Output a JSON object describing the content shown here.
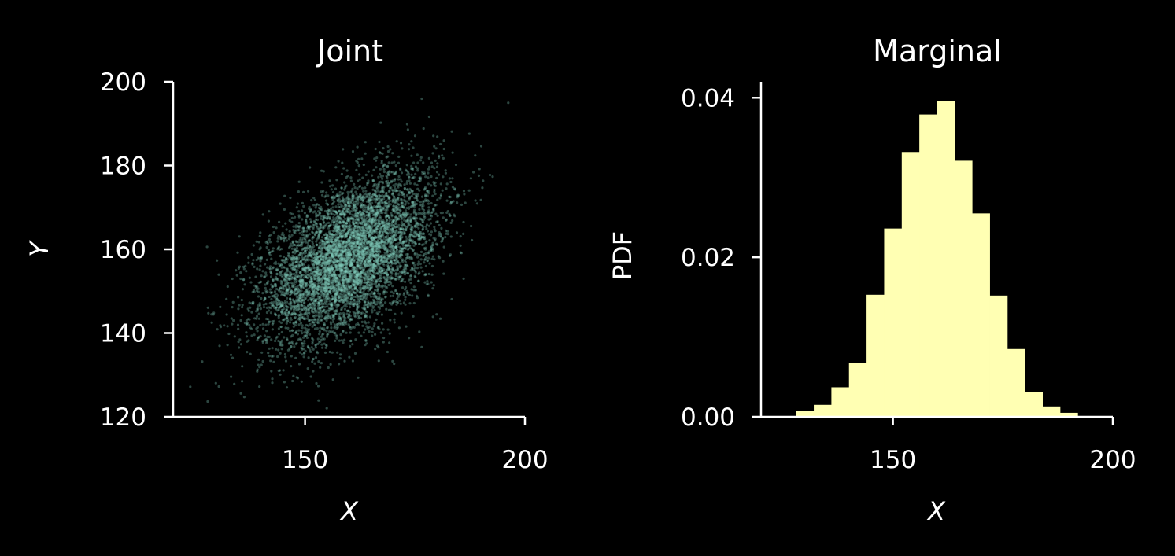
{
  "chart_data": [
    {
      "type": "scatter",
      "title": "Joint",
      "xlabel": "X",
      "ylabel": "Y",
      "xlim": [
        120,
        200
      ],
      "ylim": [
        120,
        200
      ],
      "xticks": [
        150,
        200
      ],
      "yticks": [
        120,
        140,
        160,
        180,
        200
      ],
      "color": "#7fc8b8",
      "point_opacity": 0.35,
      "grid": false,
      "legend": "none",
      "distribution": {
        "kind": "bivariate normal",
        "mean_x": 160,
        "mean_y": 158,
        "sd_x": 10,
        "sd_y": 10,
        "correlation": 0.5,
        "n_points": 6000
      }
    },
    {
      "type": "bar",
      "title": "Marginal",
      "xlabel": "X",
      "ylabel": "PDF",
      "xlim": [
        120,
        200
      ],
      "ylim": [
        0,
        0.042
      ],
      "xticks": [
        150,
        200
      ],
      "yticks": [
        "0.00",
        "0.02",
        "0.04"
      ],
      "color": "#ffffb3",
      "grid": false,
      "legend": "none",
      "bin_edges": [
        128,
        132,
        136,
        140,
        144,
        148,
        152,
        156,
        160,
        164,
        168,
        172,
        176,
        180,
        184,
        188,
        192
      ],
      "values": [
        0.0007,
        0.0015,
        0.0037,
        0.0068,
        0.0153,
        0.0236,
        0.0332,
        0.0379,
        0.0396,
        0.0321,
        0.0255,
        0.0152,
        0.0085,
        0.0031,
        0.0013,
        0.0005
      ]
    }
  ]
}
